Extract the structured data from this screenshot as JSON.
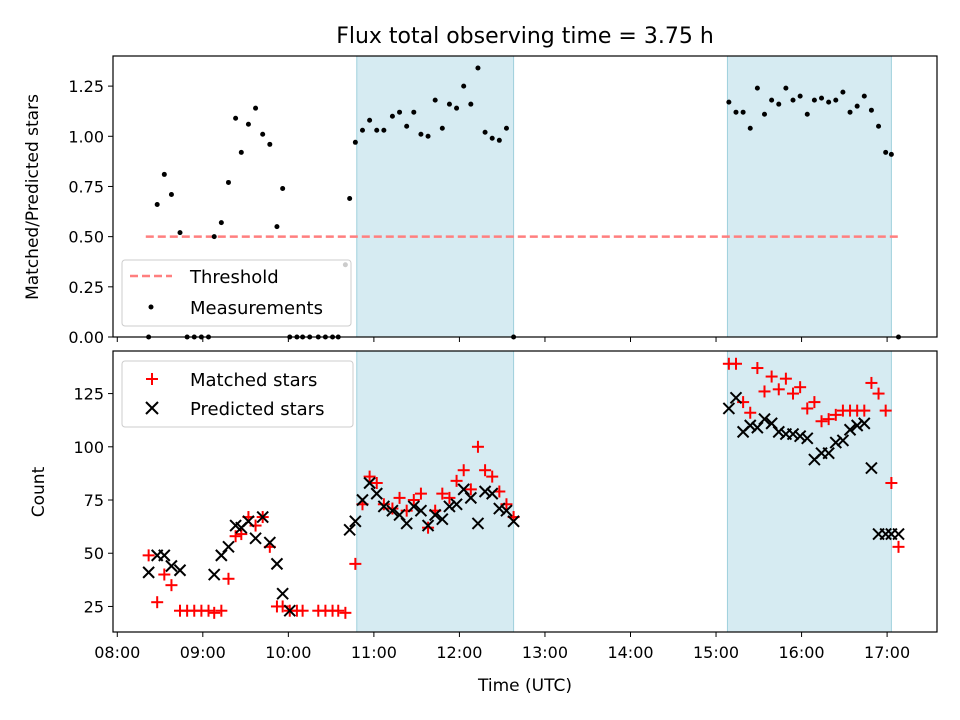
{
  "chart_data": [
    {
      "type": "scatter",
      "title": "Flux total observing time = 3.75 h",
      "xlabel": "",
      "ylabel": "Matched/Predicted stars",
      "ylim": [
        0,
        1.4
      ],
      "yticks": [
        0.0,
        0.25,
        0.5,
        0.75,
        1.0,
        1.25
      ],
      "ytick_labels": [
        "0.00",
        "0.25",
        "0.50",
        "0.75",
        "1.00",
        "1.25"
      ],
      "xlim": [
        "07:57",
        "17:35"
      ],
      "xticks": [
        "08:00",
        "09:00",
        "10:00",
        "11:00",
        "12:00",
        "13:00",
        "14:00",
        "15:00",
        "16:00",
        "17:00"
      ],
      "shaded_spans": [
        [
          "10:48",
          "12:38"
        ],
        [
          "15:08",
          "17:03"
        ]
      ],
      "threshold": {
        "label": "Threshold",
        "value": 0.5,
        "x": [
          "08:20",
          "17:08"
        ],
        "color": "#ff7f7f"
      },
      "legend": {
        "position": "lower left",
        "entries": [
          "Threshold",
          "Measurements"
        ]
      },
      "series": [
        {
          "name": "Measurements",
          "color": "#000000",
          "x": [
            "08:22",
            "08:28",
            "08:33",
            "08:38",
            "08:44",
            "08:49",
            "08:54",
            "08:59",
            "09:04",
            "09:08",
            "09:13",
            "09:18",
            "09:23",
            "09:27",
            "09:32",
            "09:37",
            "09:42",
            "09:47",
            "09:52",
            "09:56",
            "10:01",
            "10:06",
            "10:10",
            "10:15",
            "10:21",
            "10:26",
            "10:31",
            "10:35",
            "10:40",
            "10:43",
            "10:47",
            "10:52",
            "10:57",
            "11:02",
            "11:07",
            "11:13",
            "11:18",
            "11:23",
            "11:28",
            "11:33",
            "11:38",
            "11:43",
            "11:48",
            "11:53",
            "11:58",
            "12:03",
            "12:08",
            "12:13",
            "12:18",
            "12:23",
            "12:28",
            "12:33",
            "12:38",
            "15:09",
            "15:14",
            "15:19",
            "15:24",
            "15:29",
            "15:34",
            "15:39",
            "15:44",
            "15:49",
            "15:54",
            "15:59",
            "16:04",
            "16:09",
            "16:14",
            "16:19",
            "16:24",
            "16:29",
            "16:34",
            "16:39",
            "16:44",
            "16:49",
            "16:54",
            "16:59",
            "17:03",
            "17:08"
          ],
          "y": [
            0.0,
            0.66,
            0.81,
            0.71,
            0.52,
            0.0,
            0.0,
            0.0,
            0.0,
            0.5,
            0.57,
            0.77,
            1.09,
            0.92,
            1.06,
            1.14,
            1.01,
            0.96,
            0.55,
            0.74,
            0.0,
            0.0,
            0.0,
            0.0,
            0.0,
            0.0,
            0.0,
            0.0,
            0.36,
            0.69,
            0.97,
            1.03,
            1.08,
            1.03,
            1.03,
            1.1,
            1.12,
            1.05,
            1.12,
            1.01,
            1.0,
            1.18,
            1.04,
            1.16,
            1.14,
            1.25,
            1.16,
            1.34,
            1.02,
            0.99,
            0.98,
            1.04,
            0.0,
            1.17,
            1.12,
            1.12,
            1.04,
            1.24,
            1.11,
            1.18,
            1.16,
            1.24,
            1.18,
            1.2,
            1.11,
            1.18,
            1.19,
            1.17,
            1.18,
            1.22,
            1.12,
            1.15,
            1.2,
            1.13,
            1.05,
            0.92,
            0.91,
            0.0
          ]
        }
      ]
    },
    {
      "type": "scatter",
      "title": "",
      "xlabel": "Time (UTC)",
      "ylabel": "Count",
      "ylim": [
        13,
        145
      ],
      "yticks": [
        25,
        50,
        75,
        100,
        125
      ],
      "ytick_labels": [
        "25",
        "50",
        "75",
        "100",
        "125"
      ],
      "xlim": [
        "07:57",
        "17:35"
      ],
      "xticks": [
        "08:00",
        "09:00",
        "10:00",
        "11:00",
        "12:00",
        "13:00",
        "14:00",
        "15:00",
        "16:00",
        "17:00"
      ],
      "xtick_labels": [
        "08:00",
        "09:00",
        "10:00",
        "11:00",
        "12:00",
        "13:00",
        "14:00",
        "15:00",
        "16:00",
        "17:00"
      ],
      "shaded_spans": [
        [
          "10:48",
          "12:38"
        ],
        [
          "15:08",
          "17:03"
        ]
      ],
      "legend": {
        "position": "upper left",
        "entries": [
          "Matched stars",
          "Predicted stars"
        ]
      },
      "series": [
        {
          "name": "Matched stars",
          "marker": "+",
          "color": "#ff0000",
          "x": [
            "08:22",
            "08:28",
            "08:33",
            "08:38",
            "08:44",
            "08:49",
            "08:54",
            "08:59",
            "09:04",
            "09:08",
            "09:13",
            "09:18",
            "09:23",
            "09:27",
            "09:32",
            "09:37",
            "09:42",
            "09:47",
            "09:52",
            "09:56",
            "10:01",
            "10:06",
            "10:10",
            "10:21",
            "10:26",
            "10:31",
            "10:35",
            "10:40",
            "10:47",
            "10:52",
            "10:57",
            "11:02",
            "11:07",
            "11:13",
            "11:18",
            "11:23",
            "11:28",
            "11:33",
            "11:38",
            "11:43",
            "11:48",
            "11:53",
            "11:58",
            "12:03",
            "12:08",
            "12:13",
            "12:18",
            "12:23",
            "12:28",
            "12:33",
            "12:38",
            "15:09",
            "15:14",
            "15:19",
            "15:24",
            "15:29",
            "15:34",
            "15:39",
            "15:44",
            "15:49",
            "15:54",
            "15:59",
            "16:04",
            "16:09",
            "16:14",
            "16:19",
            "16:24",
            "16:29",
            "16:34",
            "16:39",
            "16:44",
            "16:49",
            "16:54",
            "16:59",
            "17:03",
            "17:08"
          ],
          "y": [
            49,
            27,
            40,
            35,
            23,
            23,
            23,
            23,
            23,
            22,
            23,
            38,
            58,
            59,
            67,
            63,
            67,
            53,
            25,
            25,
            23,
            23,
            23,
            23,
            23,
            23,
            23,
            22,
            45,
            73,
            86,
            83,
            73,
            71,
            76,
            70,
            75,
            78,
            62,
            70,
            78,
            76,
            84,
            89,
            80,
            100,
            89,
            86,
            79,
            73,
            67,
            139,
            139,
            121,
            116,
            137,
            126,
            133,
            127,
            132,
            125,
            128,
            118,
            121,
            112,
            113,
            115,
            117,
            117,
            117,
            117,
            130,
            125,
            117,
            83,
            53
          ]
        },
        {
          "name": "Predicted stars",
          "marker": "x",
          "color": "#000000",
          "x": [
            "08:22",
            "08:28",
            "08:33",
            "08:38",
            "08:44",
            "09:08",
            "09:13",
            "09:18",
            "09:23",
            "09:27",
            "09:32",
            "09:37",
            "09:42",
            "09:47",
            "09:52",
            "09:56",
            "10:01",
            "10:43",
            "10:47",
            "10:52",
            "10:57",
            "11:02",
            "11:07",
            "11:13",
            "11:18",
            "11:23",
            "11:28",
            "11:33",
            "11:38",
            "11:43",
            "11:48",
            "11:53",
            "11:58",
            "12:03",
            "12:08",
            "12:13",
            "12:18",
            "12:23",
            "12:28",
            "12:33",
            "12:38",
            "15:09",
            "15:14",
            "15:19",
            "15:24",
            "15:29",
            "15:34",
            "15:39",
            "15:44",
            "15:49",
            "15:54",
            "15:59",
            "16:04",
            "16:09",
            "16:14",
            "16:19",
            "16:24",
            "16:29",
            "16:34",
            "16:39",
            "16:44",
            "16:49",
            "16:54",
            "16:59",
            "17:03",
            "17:08"
          ],
          "y": [
            41,
            49,
            49,
            44,
            42,
            40,
            49,
            53,
            63,
            62,
            65,
            57,
            67,
            55,
            45,
            31,
            23,
            61,
            65,
            75,
            83,
            78,
            72,
            70,
            68,
            64,
            72,
            70,
            63,
            68,
            66,
            72,
            73,
            80,
            76,
            64,
            79,
            78,
            71,
            70,
            65,
            118,
            123,
            107,
            110,
            109,
            113,
            111,
            107,
            106,
            106,
            105,
            104,
            94,
            97,
            97,
            102,
            103,
            108,
            110,
            111,
            90,
            59,
            59,
            59,
            59
          ]
        }
      ]
    }
  ]
}
